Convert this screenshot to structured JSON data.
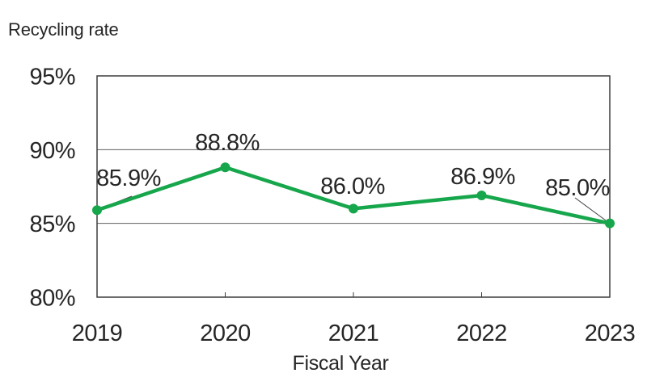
{
  "chart_data": {
    "type": "line",
    "title": "Recycling rate",
    "xlabel": "Fiscal Year",
    "ylabel": "",
    "categories": [
      "2019",
      "2020",
      "2021",
      "2022",
      "2023"
    ],
    "series": [
      {
        "name": "Recycling rate",
        "values": [
          85.9,
          88.8,
          86.0,
          86.9,
          85.0
        ]
      }
    ],
    "data_labels": [
      "85.9%",
      "88.8%",
      "86.0%",
      "86.9%",
      "85.0%"
    ],
    "y_ticks": [
      "95%",
      "90%",
      "85%",
      "80%"
    ],
    "y_tick_values": [
      95,
      90,
      85,
      80
    ],
    "ylim": [
      80,
      95
    ],
    "grid": "horizontal",
    "legend": "none",
    "marker": "circle",
    "colors": {
      "line": "#16a64b",
      "marker": "#16a64b",
      "border": "#3d3d3d",
      "gridline": "#5f5f5f",
      "leader_line": "#3f3f3f",
      "text": "#262626"
    }
  }
}
